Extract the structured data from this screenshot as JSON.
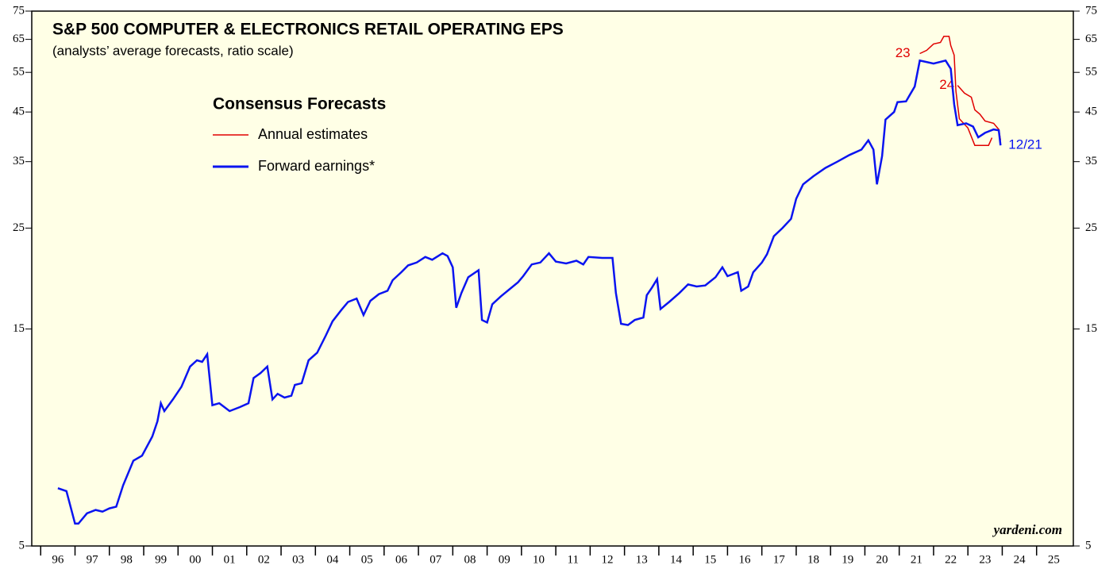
{
  "chart_data": {
    "type": "line",
    "title": "S&P 500 COMPUTER & ELECTRONICS RETAIL OPERATING EPS",
    "subtitle": "(analysts’ average forecasts, ratio scale)",
    "legend_title": "Consensus Forecasts",
    "source": "yardeni.com",
    "log_scale": true,
    "ylim": [
      5,
      75
    ],
    "yticks": [
      5,
      15,
      25,
      35,
      45,
      55,
      65,
      75
    ],
    "xlim": [
      1995.74,
      2026.07
    ],
    "xticks": [
      {
        "value": 1996,
        "label": "96"
      },
      {
        "value": 1997,
        "label": "97"
      },
      {
        "value": 1998,
        "label": "98"
      },
      {
        "value": 1999,
        "label": "99"
      },
      {
        "value": 2000,
        "label": "00"
      },
      {
        "value": 2001,
        "label": "01"
      },
      {
        "value": 2002,
        "label": "02"
      },
      {
        "value": 2003,
        "label": "03"
      },
      {
        "value": 2004,
        "label": "04"
      },
      {
        "value": 2005,
        "label": "05"
      },
      {
        "value": 2006,
        "label": "06"
      },
      {
        "value": 2007,
        "label": "07"
      },
      {
        "value": 2008,
        "label": "08"
      },
      {
        "value": 2009,
        "label": "09"
      },
      {
        "value": 2010,
        "label": "10"
      },
      {
        "value": 2011,
        "label": "11"
      },
      {
        "value": 2012,
        "label": "12"
      },
      {
        "value": 2013,
        "label": "13"
      },
      {
        "value": 2014,
        "label": "14"
      },
      {
        "value": 2015,
        "label": "15"
      },
      {
        "value": 2016,
        "label": "16"
      },
      {
        "value": 2017,
        "label": "17"
      },
      {
        "value": 2018,
        "label": "18"
      },
      {
        "value": 2019,
        "label": "19"
      },
      {
        "value": 2020,
        "label": "20"
      },
      {
        "value": 2021,
        "label": "21"
      },
      {
        "value": 2022,
        "label": "22"
      },
      {
        "value": 2023,
        "label": "23"
      },
      {
        "value": 2024,
        "label": "24"
      },
      {
        "value": 2025,
        "label": "25"
      }
    ],
    "series": [
      {
        "name": "Annual estimates",
        "color": "#e00000",
        "label": "23",
        "x": [
          2021.6,
          2021.8,
          2022.0,
          2022.2,
          2022.3,
          2022.45,
          2022.5,
          2022.6,
          2022.65,
          2022.75,
          2023.0,
          2023.2,
          2023.6,
          2023.7
        ],
        "values": [
          60.5,
          61.5,
          63.5,
          64.0,
          66.0,
          66.0,
          63.0,
          60.0,
          50.0,
          43.5,
          41.5,
          38.0,
          38.0,
          39.5
        ]
      },
      {
        "name": null,
        "color": "#e00000",
        "label": "24",
        "x": [
          2022.7,
          2022.9,
          2023.1,
          2023.2,
          2023.35,
          2023.5,
          2023.75,
          2023.9,
          2023.95
        ],
        "values": [
          51.5,
          49.5,
          48.5,
          45.5,
          44.5,
          43.0,
          42.5,
          41.2,
          39.0
        ]
      },
      {
        "name": "Forward earnings*",
        "color": "#0a14f0",
        "label": "12/21",
        "x": [
          1996.5,
          1996.75,
          1997.0,
          1997.1,
          1997.35,
          1997.6,
          1997.8,
          1998.0,
          1998.2,
          1998.4,
          1998.7,
          1998.95,
          1999.25,
          1999.4,
          1999.5,
          1999.6,
          1999.85,
          2000.1,
          2000.35,
          2000.55,
          2000.7,
          2000.85,
          2001.0,
          2001.2,
          2001.5,
          2001.8,
          2002.05,
          2002.2,
          2002.4,
          2002.6,
          2002.75,
          2002.9,
          2003.1,
          2003.3,
          2003.4,
          2003.6,
          2003.8,
          2004.05,
          2004.3,
          2004.5,
          2004.75,
          2004.95,
          2005.2,
          2005.4,
          2005.6,
          2005.85,
          2006.1,
          2006.25,
          2006.5,
          2006.7,
          2006.95,
          2007.2,
          2007.4,
          2007.7,
          2007.85,
          2008.0,
          2008.1,
          2008.25,
          2008.45,
          2008.75,
          2008.85,
          2009.0,
          2009.15,
          2009.4,
          2009.6,
          2009.9,
          2010.05,
          2010.3,
          2010.55,
          2010.8,
          2011.0,
          2011.3,
          2011.6,
          2011.8,
          2011.95,
          2012.35,
          2012.65,
          2012.75,
          2012.9,
          2013.1,
          2013.3,
          2013.55,
          2013.65,
          2013.8,
          2013.95,
          2014.05,
          2014.3,
          2014.6,
          2014.85,
          2015.1,
          2015.35,
          2015.65,
          2015.85,
          2016.0,
          2016.3,
          2016.4,
          2016.6,
          2016.75,
          2017.0,
          2017.15,
          2017.35,
          2017.6,
          2017.85,
          2018.0,
          2018.2,
          2018.5,
          2018.85,
          2019.2,
          2019.55,
          2019.9,
          2020.1,
          2020.25,
          2020.35,
          2020.5,
          2020.6,
          2020.85,
          2020.95,
          2021.2,
          2021.45,
          2021.6,
          2022.0,
          2022.35,
          2022.5,
          2022.6,
          2022.7,
          2022.95,
          2023.15,
          2023.3,
          2023.5,
          2023.75,
          2023.9,
          2023.95
        ],
        "values": [
          6.7,
          6.6,
          5.6,
          5.6,
          5.9,
          6.0,
          5.95,
          6.05,
          6.1,
          6.8,
          7.7,
          7.9,
          8.7,
          9.4,
          10.3,
          9.9,
          10.5,
          11.2,
          12.4,
          12.8,
          12.7,
          13.2,
          10.2,
          10.3,
          9.9,
          10.1,
          10.3,
          11.7,
          12.0,
          12.4,
          10.5,
          10.8,
          10.6,
          10.7,
          11.3,
          11.4,
          12.8,
          13.3,
          14.5,
          15.6,
          16.5,
          17.2,
          17.5,
          16.1,
          17.3,
          17.9,
          18.2,
          19.2,
          20.0,
          20.7,
          21.0,
          21.6,
          21.3,
          22.0,
          21.7,
          20.5,
          16.7,
          18.0,
          19.5,
          20.2,
          15.7,
          15.5,
          17.0,
          17.7,
          18.2,
          19.0,
          19.6,
          20.8,
          21.0,
          22.0,
          21.1,
          20.9,
          21.2,
          20.8,
          21.6,
          21.5,
          21.5,
          18.0,
          15.4,
          15.3,
          15.7,
          15.9,
          17.8,
          18.5,
          19.3,
          16.6,
          17.2,
          18.0,
          18.8,
          18.6,
          18.7,
          19.5,
          20.5,
          19.6,
          20.0,
          18.2,
          18.6,
          20.0,
          21.0,
          21.9,
          24.0,
          25.0,
          26.2,
          29.0,
          31.2,
          32.5,
          33.9,
          35.0,
          36.2,
          37.2,
          39.0,
          37.2,
          31.2,
          36.0,
          43.3,
          45.0,
          47.3,
          47.5,
          51.2,
          58.4,
          57.5,
          58.4,
          56.0,
          46.8,
          42.1,
          42.5,
          41.8,
          39.6,
          40.5,
          41.2,
          41.0,
          38.0
        ]
      }
    ]
  }
}
